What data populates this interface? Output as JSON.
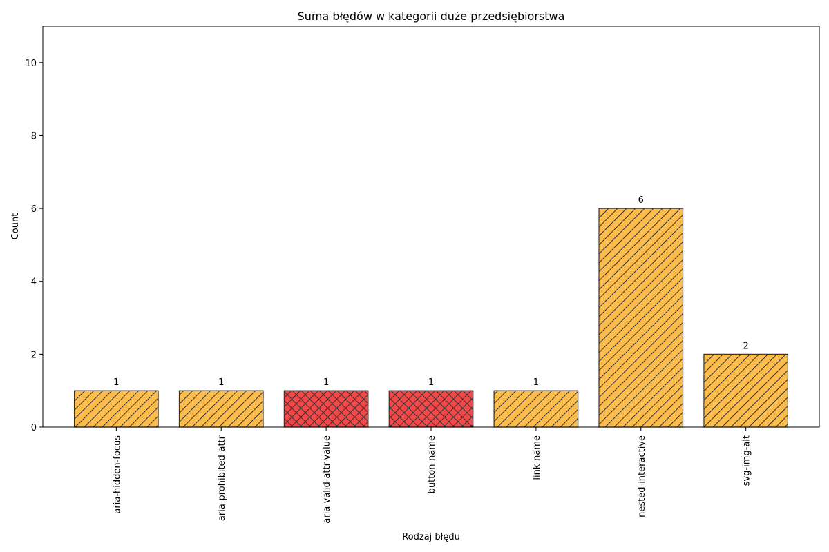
{
  "chart_data": {
    "type": "bar",
    "title": "Suma błędów w kategorii duże przedsiębiorstwa",
    "xlabel": "Rodzaj błędu",
    "ylabel": "Count",
    "categories": [
      "aria-hidden-focus",
      "aria-prohibited-attr",
      "aria-valid-attr-value",
      "button-name",
      "link-name",
      "nested-interactive",
      "svg-img-alt"
    ],
    "values": [
      1,
      1,
      1,
      1,
      1,
      6,
      2
    ],
    "value_labels": [
      "1",
      "1",
      "1",
      "1",
      "1",
      "6",
      "2"
    ],
    "bar_colors": [
      "#fbbc4c",
      "#fbbc4c",
      "#f44848",
      "#f44848",
      "#fbbc4c",
      "#fbbc4c",
      "#fbbc4c"
    ],
    "bar_hatches": [
      "diagonal",
      "diagonal",
      "crosshatch",
      "crosshatch",
      "diagonal",
      "diagonal",
      "diagonal"
    ],
    "ylim": [
      0,
      11
    ],
    "y_ticks": [
      0,
      2,
      4,
      6,
      8,
      10
    ],
    "y_tick_labels": [
      "0",
      "2",
      "4",
      "6",
      "8",
      "10"
    ],
    "grid": false,
    "legend": "none",
    "colors": {
      "edge": "#333333",
      "axis": "#000000"
    }
  }
}
